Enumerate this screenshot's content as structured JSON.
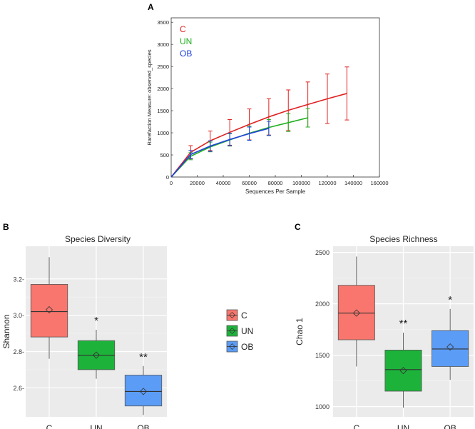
{
  "figure": {
    "panels": [
      "A",
      "B",
      "C"
    ],
    "legend": {
      "entries": [
        {
          "label": "C",
          "color": "#f8766d"
        },
        {
          "label": "UN",
          "color": "#1db33a"
        },
        {
          "label": "OB",
          "color": "#5b9cf6"
        }
      ]
    }
  },
  "chart_data": [
    {
      "panel": "A",
      "type": "line",
      "title": "",
      "xlabel": "Sequences Per Sample",
      "ylabel": "Rarefaction Measure: observed_species",
      "xlim": [
        0,
        160000
      ],
      "ylim": [
        0,
        3600
      ],
      "xticks": [
        0,
        20000,
        40000,
        60000,
        80000,
        100000,
        120000,
        140000,
        160000
      ],
      "xtick_labels": [
        "0",
        "20000",
        "40000",
        "60000",
        "80000",
        "100000",
        "120000",
        "140000",
        "160000"
      ],
      "yticks": [
        0,
        500,
        1000,
        1500,
        2000,
        2500,
        3000,
        3500
      ],
      "ytick_labels": [
        "0",
        "500",
        "1000",
        "1500",
        "2000",
        "2500",
        "3000",
        "3500"
      ],
      "legend_position": "top-left",
      "series": [
        {
          "name": "C",
          "color": "#e02020",
          "x": [
            0,
            15000,
            30000,
            45000,
            60000,
            75000,
            90000,
            105000,
            120000,
            135000
          ],
          "y": [
            0,
            560,
            820,
            1010,
            1190,
            1360,
            1510,
            1640,
            1770,
            1890
          ],
          "err": [
            0,
            150,
            220,
            290,
            350,
            410,
            460,
            510,
            560,
            600
          ]
        },
        {
          "name": "UN",
          "color": "#20b020",
          "x": [
            0,
            15000,
            30000,
            45000,
            60000,
            75000,
            90000,
            105000
          ],
          "y": [
            0,
            470,
            680,
            840,
            990,
            1120,
            1230,
            1340
          ],
          "err": [
            0,
            80,
            110,
            140,
            160,
            180,
            200,
            210
          ]
        },
        {
          "name": "OB",
          "color": "#2040e0",
          "x": [
            0,
            15000,
            30000,
            45000,
            60000,
            75000
          ],
          "y": [
            0,
            510,
            700,
            850,
            980,
            1100
          ],
          "err": [
            0,
            90,
            120,
            140,
            150,
            160
          ]
        }
      ]
    },
    {
      "panel": "B",
      "type": "box",
      "title": "Species Diversity",
      "xlabel": "",
      "ylabel": "Shannon",
      "ylim": [
        2.44,
        3.38
      ],
      "yticks": [
        2.6,
        2.8,
        3.0,
        3.2
      ],
      "ytick_labels": [
        "2.6-",
        "2.8-",
        "3.0-",
        "3.2-"
      ],
      "categories": [
        "C",
        "UN",
        "OB"
      ],
      "colors": [
        "#f8766d",
        "#1db33a",
        "#5b9cf6"
      ],
      "boxes": [
        {
          "min": 2.76,
          "q1": 2.88,
          "median": 3.02,
          "q3": 3.17,
          "max": 3.32,
          "mean": 3.03
        },
        {
          "min": 2.65,
          "q1": 2.7,
          "median": 2.78,
          "q3": 2.86,
          "max": 2.92,
          "mean": 2.78
        },
        {
          "min": 2.45,
          "q1": 2.5,
          "median": 2.58,
          "q3": 2.67,
          "max": 2.72,
          "mean": 2.58
        }
      ],
      "significance": [
        "",
        "*",
        "**"
      ]
    },
    {
      "panel": "C",
      "type": "box",
      "title": "Species Richness",
      "xlabel": "",
      "ylabel": "Chao 1",
      "ylim": [
        900,
        2560
      ],
      "yticks": [
        1000,
        1500,
        2000,
        2500
      ],
      "ytick_labels": [
        "1000",
        "1500",
        "2000",
        "2500"
      ],
      "categories": [
        "C",
        "UN",
        "OB"
      ],
      "colors": [
        "#f8766d",
        "#1db33a",
        "#5b9cf6"
      ],
      "boxes": [
        {
          "min": 1390,
          "q1": 1650,
          "median": 1910,
          "q3": 2180,
          "max": 2460,
          "mean": 1910
        },
        {
          "min": 990,
          "q1": 1150,
          "median": 1360,
          "q3": 1550,
          "max": 1720,
          "mean": 1350
        },
        {
          "min": 1260,
          "q1": 1390,
          "median": 1560,
          "q3": 1740,
          "max": 1950,
          "mean": 1580
        }
      ],
      "significance": [
        "",
        "**",
        "*"
      ]
    }
  ]
}
